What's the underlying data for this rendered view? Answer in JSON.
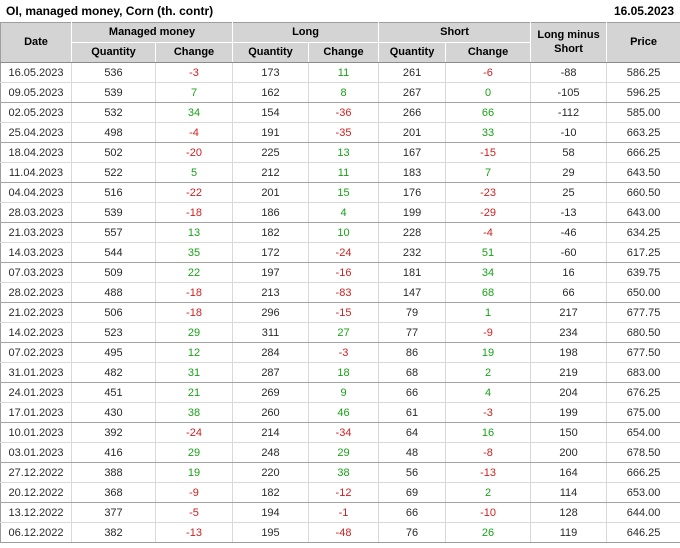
{
  "header": {
    "title": "OI, managed money, Corn (th. contr)",
    "date": "16.05.2023"
  },
  "colors": {
    "positive": "#18a118",
    "negative": "#cc2222",
    "header_bg": "#d4d4d4"
  },
  "table": {
    "headers": {
      "date": "Date",
      "managed_money": "Managed money",
      "long": "Long",
      "short": "Short",
      "quantity": "Quantity",
      "change": "Change",
      "long_minus_short": "Long minus Short",
      "price": "Price"
    },
    "rows": [
      {
        "date": "16.05.2023",
        "mm_qty": "536",
        "mm_chg": "-3",
        "long_qty": "173",
        "long_chg": "11",
        "short_qty": "261",
        "short_chg": "-6",
        "lms": "-88",
        "price": "586.25"
      },
      {
        "date": "09.05.2023",
        "mm_qty": "539",
        "mm_chg": "7",
        "long_qty": "162",
        "long_chg": "8",
        "short_qty": "267",
        "short_chg": "0",
        "lms": "-105",
        "price": "596.25"
      },
      {
        "date": "02.05.2023",
        "mm_qty": "532",
        "mm_chg": "34",
        "long_qty": "154",
        "long_chg": "-36",
        "short_qty": "266",
        "short_chg": "66",
        "lms": "-112",
        "price": "585.00"
      },
      {
        "date": "25.04.2023",
        "mm_qty": "498",
        "mm_chg": "-4",
        "long_qty": "191",
        "long_chg": "-35",
        "short_qty": "201",
        "short_chg": "33",
        "lms": "-10",
        "price": "663.25"
      },
      {
        "date": "18.04.2023",
        "mm_qty": "502",
        "mm_chg": "-20",
        "long_qty": "225",
        "long_chg": "13",
        "short_qty": "167",
        "short_chg": "-15",
        "lms": "58",
        "price": "666.25"
      },
      {
        "date": "11.04.2023",
        "mm_qty": "522",
        "mm_chg": "5",
        "long_qty": "212",
        "long_chg": "11",
        "short_qty": "183",
        "short_chg": "7",
        "lms": "29",
        "price": "643.50"
      },
      {
        "date": "04.04.2023",
        "mm_qty": "516",
        "mm_chg": "-22",
        "long_qty": "201",
        "long_chg": "15",
        "short_qty": "176",
        "short_chg": "-23",
        "lms": "25",
        "price": "660.50"
      },
      {
        "date": "28.03.2023",
        "mm_qty": "539",
        "mm_chg": "-18",
        "long_qty": "186",
        "long_chg": "4",
        "short_qty": "199",
        "short_chg": "-29",
        "lms": "-13",
        "price": "643.00"
      },
      {
        "date": "21.03.2023",
        "mm_qty": "557",
        "mm_chg": "13",
        "long_qty": "182",
        "long_chg": "10",
        "short_qty": "228",
        "short_chg": "-4",
        "lms": "-46",
        "price": "634.25"
      },
      {
        "date": "14.03.2023",
        "mm_qty": "544",
        "mm_chg": "35",
        "long_qty": "172",
        "long_chg": "-24",
        "short_qty": "232",
        "short_chg": "51",
        "lms": "-60",
        "price": "617.25"
      },
      {
        "date": "07.03.2023",
        "mm_qty": "509",
        "mm_chg": "22",
        "long_qty": "197",
        "long_chg": "-16",
        "short_qty": "181",
        "short_chg": "34",
        "lms": "16",
        "price": "639.75"
      },
      {
        "date": "28.02.2023",
        "mm_qty": "488",
        "mm_chg": "-18",
        "long_qty": "213",
        "long_chg": "-83",
        "short_qty": "147",
        "short_chg": "68",
        "lms": "66",
        "price": "650.00"
      },
      {
        "date": "21.02.2023",
        "mm_qty": "506",
        "mm_chg": "-18",
        "long_qty": "296",
        "long_chg": "-15",
        "short_qty": "79",
        "short_chg": "1",
        "lms": "217",
        "price": "677.75"
      },
      {
        "date": "14.02.2023",
        "mm_qty": "523",
        "mm_chg": "29",
        "long_qty": "311",
        "long_chg": "27",
        "short_qty": "77",
        "short_chg": "-9",
        "lms": "234",
        "price": "680.50"
      },
      {
        "date": "07.02.2023",
        "mm_qty": "495",
        "mm_chg": "12",
        "long_qty": "284",
        "long_chg": "-3",
        "short_qty": "86",
        "short_chg": "19",
        "lms": "198",
        "price": "677.50"
      },
      {
        "date": "31.01.2023",
        "mm_qty": "482",
        "mm_chg": "31",
        "long_qty": "287",
        "long_chg": "18",
        "short_qty": "68",
        "short_chg": "2",
        "lms": "219",
        "price": "683.00"
      },
      {
        "date": "24.01.2023",
        "mm_qty": "451",
        "mm_chg": "21",
        "long_qty": "269",
        "long_chg": "9",
        "short_qty": "66",
        "short_chg": "4",
        "lms": "204",
        "price": "676.25"
      },
      {
        "date": "17.01.2023",
        "mm_qty": "430",
        "mm_chg": "38",
        "long_qty": "260",
        "long_chg": "46",
        "short_qty": "61",
        "short_chg": "-3",
        "lms": "199",
        "price": "675.00"
      },
      {
        "date": "10.01.2023",
        "mm_qty": "392",
        "mm_chg": "-24",
        "long_qty": "214",
        "long_chg": "-34",
        "short_qty": "64",
        "short_chg": "16",
        "lms": "150",
        "price": "654.00"
      },
      {
        "date": "03.01.2023",
        "mm_qty": "416",
        "mm_chg": "29",
        "long_qty": "248",
        "long_chg": "29",
        "short_qty": "48",
        "short_chg": "-8",
        "lms": "200",
        "price": "678.50"
      },
      {
        "date": "27.12.2022",
        "mm_qty": "388",
        "mm_chg": "19",
        "long_qty": "220",
        "long_chg": "38",
        "short_qty": "56",
        "short_chg": "-13",
        "lms": "164",
        "price": "666.25"
      },
      {
        "date": "20.12.2022",
        "mm_qty": "368",
        "mm_chg": "-9",
        "long_qty": "182",
        "long_chg": "-12",
        "short_qty": "69",
        "short_chg": "2",
        "lms": "114",
        "price": "653.00"
      },
      {
        "date": "13.12.2022",
        "mm_qty": "377",
        "mm_chg": "-5",
        "long_qty": "194",
        "long_chg": "-1",
        "short_qty": "66",
        "short_chg": "-10",
        "lms": "128",
        "price": "644.00"
      },
      {
        "date": "06.12.2022",
        "mm_qty": "382",
        "mm_chg": "-13",
        "long_qty": "195",
        "long_chg": "-48",
        "short_qty": "76",
        "short_chg": "26",
        "lms": "119",
        "price": "646.25"
      }
    ]
  }
}
